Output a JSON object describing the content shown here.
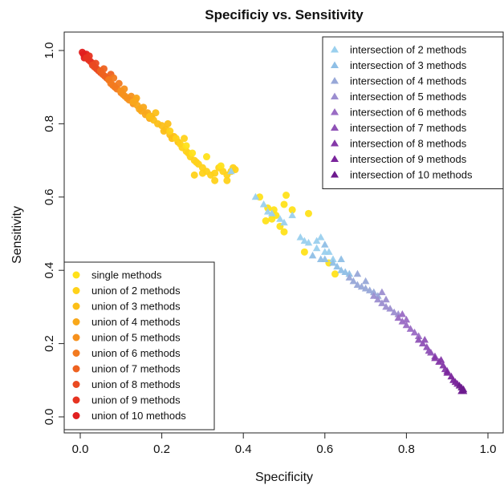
{
  "chart_data": {
    "type": "scatter",
    "title": "Specificiy vs. Sensitivity",
    "xlabel": "Specificity",
    "ylabel": "Sensitivity",
    "xlim": [
      0.0,
      1.0
    ],
    "ylim": [
      0.0,
      1.0
    ],
    "x_ticks": [
      "0.0",
      "0.2",
      "0.4",
      "0.6",
      "0.8",
      "1.0"
    ],
    "y_ticks": [
      "0.0",
      "0.2",
      "0.4",
      "0.6",
      "0.8",
      "1.0"
    ],
    "grid": false,
    "legends": [
      {
        "position": "top-right",
        "marker": "triangle",
        "entries": [
          {
            "label": "intersection of 2 methods",
            "color": "#9ad0ee"
          },
          {
            "label": "intersection of 3 methods",
            "color": "#8fbfe6"
          },
          {
            "label": "intersection of 4 methods",
            "color": "#98a8d8"
          },
          {
            "label": "intersection of 5 methods",
            "color": "#9c8ed0"
          },
          {
            "label": "intersection of 6 methods",
            "color": "#9a6cc4"
          },
          {
            "label": "intersection of 7 methods",
            "color": "#8f52b6"
          },
          {
            "label": "intersection of 8 methods",
            "color": "#8538a8"
          },
          {
            "label": "intersection of 9 methods",
            "color": "#7a259c"
          },
          {
            "label": "intersection of 10 methods",
            "color": "#6d1a8e"
          }
        ]
      },
      {
        "position": "bottom-left",
        "marker": "circle",
        "entries": [
          {
            "label": "single methods",
            "color": "#ffe11a"
          },
          {
            "label": "union of 2 methods",
            "color": "#ffd21a"
          },
          {
            "label": "union of 3 methods",
            "color": "#fcbf18"
          },
          {
            "label": "union of 4 methods",
            "color": "#f9a81a"
          },
          {
            "label": "union of 5 methods",
            "color": "#f6911d"
          },
          {
            "label": "union of 6 methods",
            "color": "#f27a1f"
          },
          {
            "label": "union of 7 methods",
            "color": "#ee6220"
          },
          {
            "label": "union of 8 methods",
            "color": "#ea4a21"
          },
          {
            "label": "union of 9 methods",
            "color": "#e63321"
          },
          {
            "label": "union of 10 methods",
            "color": "#e11f1f"
          }
        ]
      }
    ],
    "series": [
      {
        "label_ref": "union of 10 methods",
        "marker": "circle",
        "color": "#e11f1f",
        "points": [
          [
            0.005,
            0.995
          ],
          [
            0.008,
            0.99
          ],
          [
            0.012,
            0.985
          ],
          [
            0.015,
            0.99
          ],
          [
            0.01,
            0.98
          ]
        ]
      },
      {
        "label_ref": "union of 9 methods",
        "marker": "circle",
        "color": "#e63321",
        "points": [
          [
            0.015,
            0.98
          ],
          [
            0.02,
            0.975
          ],
          [
            0.025,
            0.97
          ],
          [
            0.03,
            0.965
          ],
          [
            0.022,
            0.985
          ]
        ]
      },
      {
        "label_ref": "union of 8 methods",
        "marker": "circle",
        "color": "#ea4a21",
        "points": [
          [
            0.03,
            0.96
          ],
          [
            0.035,
            0.955
          ],
          [
            0.04,
            0.95
          ],
          [
            0.045,
            0.945
          ],
          [
            0.038,
            0.965
          ],
          [
            0.05,
            0.94
          ]
        ]
      },
      {
        "label_ref": "union of 7 methods",
        "marker": "circle",
        "color": "#ee6220",
        "points": [
          [
            0.05,
            0.945
          ],
          [
            0.055,
            0.935
          ],
          [
            0.06,
            0.93
          ],
          [
            0.065,
            0.925
          ],
          [
            0.07,
            0.92
          ],
          [
            0.058,
            0.95
          ],
          [
            0.075,
            0.935
          ]
        ]
      },
      {
        "label_ref": "union of 6 methods",
        "marker": "circle",
        "color": "#f27a1f",
        "points": [
          [
            0.07,
            0.92
          ],
          [
            0.075,
            0.91
          ],
          [
            0.08,
            0.905
          ],
          [
            0.085,
            0.9
          ],
          [
            0.09,
            0.895
          ],
          [
            0.095,
            0.91
          ],
          [
            0.1,
            0.885
          ],
          [
            0.082,
            0.925
          ]
        ]
      },
      {
        "label_ref": "union of 5 methods",
        "marker": "circle",
        "color": "#f6911d",
        "points": [
          [
            0.1,
            0.89
          ],
          [
            0.105,
            0.88
          ],
          [
            0.11,
            0.875
          ],
          [
            0.115,
            0.87
          ],
          [
            0.12,
            0.865
          ],
          [
            0.125,
            0.875
          ],
          [
            0.13,
            0.855
          ],
          [
            0.108,
            0.895
          ],
          [
            0.135,
            0.865
          ]
        ]
      },
      {
        "label_ref": "union of 4 methods",
        "marker": "circle",
        "color": "#f9a81a",
        "points": [
          [
            0.13,
            0.86
          ],
          [
            0.14,
            0.85
          ],
          [
            0.145,
            0.84
          ],
          [
            0.15,
            0.835
          ],
          [
            0.155,
            0.845
          ],
          [
            0.16,
            0.825
          ],
          [
            0.165,
            0.83
          ],
          [
            0.17,
            0.815
          ],
          [
            0.138,
            0.87
          ],
          [
            0.175,
            0.82
          ]
        ]
      },
      {
        "label_ref": "union of 3 methods",
        "marker": "circle",
        "color": "#fcbf18",
        "points": [
          [
            0.17,
            0.82
          ],
          [
            0.18,
            0.81
          ],
          [
            0.19,
            0.8
          ],
          [
            0.2,
            0.795
          ],
          [
            0.205,
            0.78
          ],
          [
            0.21,
            0.785
          ],
          [
            0.22,
            0.77
          ],
          [
            0.225,
            0.76
          ],
          [
            0.23,
            0.765
          ],
          [
            0.185,
            0.83
          ],
          [
            0.24,
            0.75
          ],
          [
            0.215,
            0.8
          ]
        ]
      },
      {
        "label_ref": "union of 2 methods",
        "marker": "circle",
        "color": "#ffd21a",
        "points": [
          [
            0.22,
            0.78
          ],
          [
            0.235,
            0.76
          ],
          [
            0.245,
            0.745
          ],
          [
            0.25,
            0.735
          ],
          [
            0.26,
            0.725
          ],
          [
            0.265,
            0.72
          ],
          [
            0.27,
            0.71
          ],
          [
            0.28,
            0.7
          ],
          [
            0.285,
            0.695
          ],
          [
            0.29,
            0.69
          ],
          [
            0.3,
            0.68
          ],
          [
            0.31,
            0.67
          ],
          [
            0.32,
            0.66
          ],
          [
            0.33,
            0.665
          ],
          [
            0.34,
            0.68
          ],
          [
            0.35,
            0.67
          ],
          [
            0.36,
            0.66
          ],
          [
            0.37,
            0.67
          ],
          [
            0.375,
            0.68
          ],
          [
            0.38,
            0.675
          ],
          [
            0.3,
            0.665
          ],
          [
            0.28,
            0.66
          ],
          [
            0.36,
            0.645
          ],
          [
            0.33,
            0.645
          ],
          [
            0.255,
            0.76
          ]
        ]
      },
      {
        "label_ref": "single methods",
        "marker": "circle",
        "color": "#ffe11a",
        "points": [
          [
            0.26,
            0.74
          ],
          [
            0.275,
            0.72
          ],
          [
            0.31,
            0.71
          ],
          [
            0.345,
            0.685
          ],
          [
            0.44,
            0.6
          ],
          [
            0.46,
            0.57
          ],
          [
            0.475,
            0.565
          ],
          [
            0.48,
            0.55
          ],
          [
            0.5,
            0.58
          ],
          [
            0.505,
            0.605
          ],
          [
            0.455,
            0.535
          ],
          [
            0.49,
            0.52
          ],
          [
            0.5,
            0.505
          ],
          [
            0.52,
            0.565
          ],
          [
            0.56,
            0.555
          ],
          [
            0.47,
            0.54
          ],
          [
            0.55,
            0.45
          ],
          [
            0.61,
            0.42
          ],
          [
            0.625,
            0.39
          ]
        ]
      },
      {
        "label_ref": "intersection of 2 methods",
        "marker": "triangle",
        "color": "#9ad0ee",
        "points": [
          [
            0.43,
            0.6
          ],
          [
            0.45,
            0.58
          ],
          [
            0.46,
            0.56
          ],
          [
            0.47,
            0.555
          ],
          [
            0.49,
            0.54
          ],
          [
            0.5,
            0.53
          ],
          [
            0.52,
            0.55
          ],
          [
            0.54,
            0.49
          ],
          [
            0.55,
            0.48
          ],
          [
            0.56,
            0.475
          ],
          [
            0.58,
            0.46
          ],
          [
            0.6,
            0.45
          ],
          [
            0.62,
            0.43
          ],
          [
            0.58,
            0.48
          ],
          [
            0.59,
            0.49
          ],
          [
            0.61,
            0.45
          ],
          [
            0.37,
            0.67
          ]
        ]
      },
      {
        "label_ref": "intersection of 3 methods",
        "marker": "triangle",
        "color": "#8fbfe6",
        "points": [
          [
            0.6,
            0.43
          ],
          [
            0.62,
            0.42
          ],
          [
            0.63,
            0.41
          ],
          [
            0.64,
            0.4
          ],
          [
            0.65,
            0.395
          ],
          [
            0.66,
            0.39
          ],
          [
            0.6,
            0.47
          ],
          [
            0.64,
            0.43
          ],
          [
            0.57,
            0.44
          ],
          [
            0.59,
            0.43
          ]
        ]
      },
      {
        "label_ref": "intersection of 4 methods",
        "marker": "triangle",
        "color": "#98a8d8",
        "points": [
          [
            0.66,
            0.38
          ],
          [
            0.67,
            0.37
          ],
          [
            0.68,
            0.36
          ],
          [
            0.69,
            0.355
          ],
          [
            0.7,
            0.35
          ],
          [
            0.71,
            0.345
          ],
          [
            0.7,
            0.37
          ],
          [
            0.72,
            0.34
          ],
          [
            0.68,
            0.39
          ],
          [
            0.73,
            0.33
          ]
        ]
      },
      {
        "label_ref": "intersection of 5 methods",
        "marker": "triangle",
        "color": "#9c8ed0",
        "points": [
          [
            0.72,
            0.33
          ],
          [
            0.73,
            0.32
          ],
          [
            0.74,
            0.31
          ],
          [
            0.75,
            0.3
          ],
          [
            0.76,
            0.295
          ],
          [
            0.77,
            0.285
          ],
          [
            0.75,
            0.32
          ],
          [
            0.78,
            0.28
          ],
          [
            0.74,
            0.34
          ]
        ]
      },
      {
        "label_ref": "intersection of 6 methods",
        "marker": "triangle",
        "color": "#9a6cc4",
        "points": [
          [
            0.78,
            0.27
          ],
          [
            0.79,
            0.26
          ],
          [
            0.8,
            0.25
          ],
          [
            0.81,
            0.24
          ],
          [
            0.82,
            0.23
          ],
          [
            0.8,
            0.265
          ],
          [
            0.83,
            0.22
          ],
          [
            0.79,
            0.28
          ]
        ]
      },
      {
        "label_ref": "intersection of 7 methods",
        "marker": "triangle",
        "color": "#8f52b6",
        "points": [
          [
            0.83,
            0.21
          ],
          [
            0.84,
            0.2
          ],
          [
            0.85,
            0.19
          ],
          [
            0.855,
            0.18
          ],
          [
            0.86,
            0.175
          ],
          [
            0.845,
            0.21
          ],
          [
            0.87,
            0.165
          ]
        ]
      },
      {
        "label_ref": "intersection of 8 methods",
        "marker": "triangle",
        "color": "#8538a8",
        "points": [
          [
            0.87,
            0.16
          ],
          [
            0.88,
            0.15
          ],
          [
            0.89,
            0.14
          ],
          [
            0.895,
            0.13
          ],
          [
            0.9,
            0.125
          ],
          [
            0.885,
            0.155
          ]
        ]
      },
      {
        "label_ref": "intersection of 9 methods",
        "marker": "triangle",
        "color": "#7a259c",
        "points": [
          [
            0.9,
            0.12
          ],
          [
            0.91,
            0.11
          ],
          [
            0.915,
            0.1
          ],
          [
            0.92,
            0.095
          ],
          [
            0.925,
            0.09
          ]
        ]
      },
      {
        "label_ref": "intersection of 10 methods",
        "marker": "triangle",
        "color": "#6d1a8e",
        "points": [
          [
            0.93,
            0.085
          ],
          [
            0.935,
            0.08
          ],
          [
            0.94,
            0.075
          ],
          [
            0.935,
            0.07
          ],
          [
            0.94,
            0.07
          ]
        ]
      }
    ]
  }
}
